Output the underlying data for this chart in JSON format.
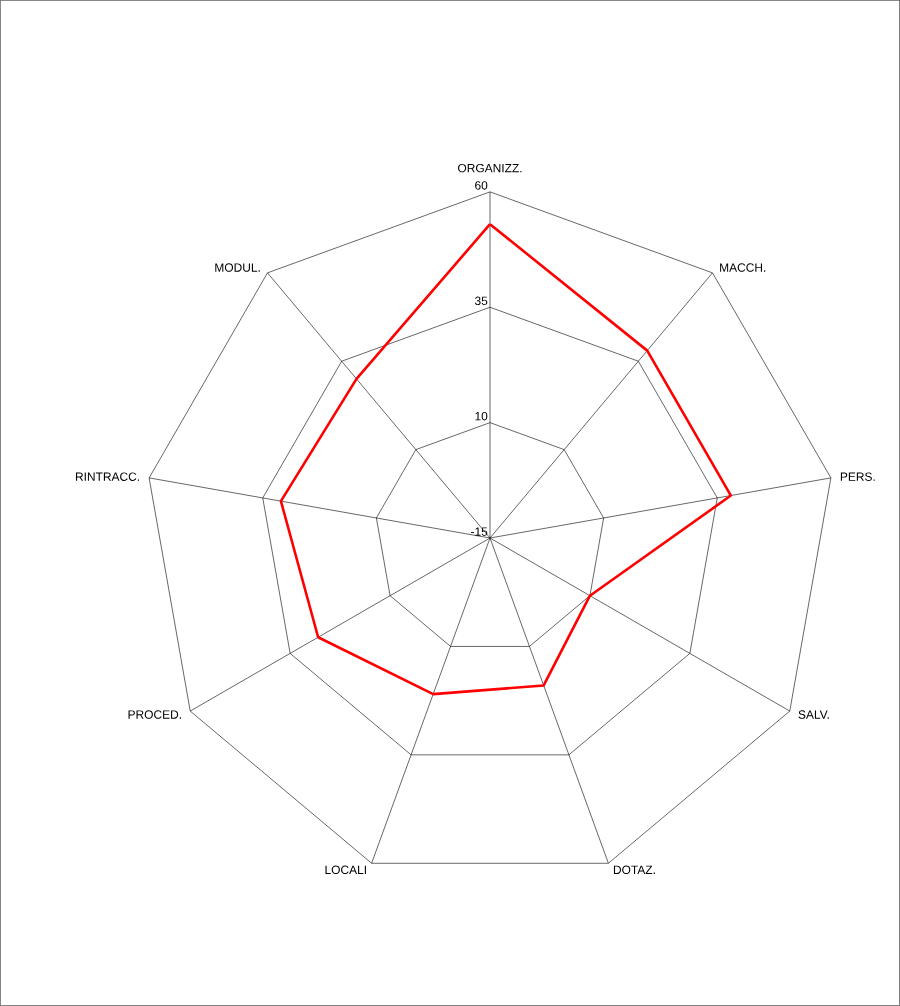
{
  "chart_data": {
    "type": "radar",
    "categories": [
      "ORGANIZZ.",
      "MACCH.",
      "PERS.",
      "SALV.",
      "DOTAZ.",
      "LOCALI",
      "PROCED.",
      "RINTRACC.",
      "MODUL."
    ],
    "series": [
      {
        "color": "#ff0000",
        "values": [
          53,
          38,
          38,
          10,
          19,
          21,
          28,
          31,
          30
        ]
      }
    ],
    "ylim": [
      -15,
      60
    ],
    "yticks": [
      -15,
      10,
      35,
      60
    ],
    "grid": true
  }
}
